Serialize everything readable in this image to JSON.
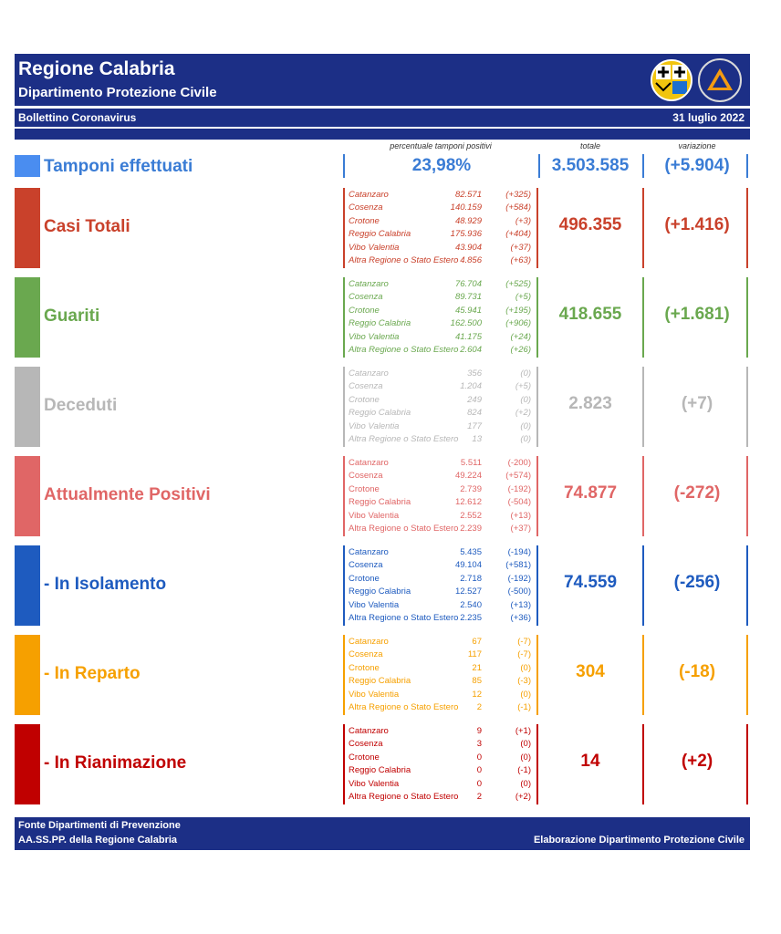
{
  "header": {
    "title": "Regione Calabria",
    "subtitle": "Dipartimento Protezione Civile",
    "bulletin": "Bollettino Coronavirus",
    "date": "31 luglio 2022",
    "logo2_text": "PROTEZIONE CIVILE"
  },
  "columns": {
    "percent_label": "percentuale tamponi positivi",
    "total_label": "totale",
    "variation_label": "variazione"
  },
  "tamponi": {
    "label": "Tamponi effettuati",
    "percent": "23,98%",
    "total": "3.503.585",
    "variation": "(+5.904)",
    "color": "#3a7cd5"
  },
  "sections": [
    {
      "label": "Casi Totali",
      "color": "#c9412b",
      "italic": true,
      "total": "496.355",
      "variation": "(+1.416)",
      "rows": [
        {
          "place": "Catanzaro",
          "value": "82.571",
          "delta": "(+325)"
        },
        {
          "place": "Cosenza",
          "value": "140.159",
          "delta": "(+584)"
        },
        {
          "place": "Crotone",
          "value": "48.929",
          "delta": "(+3)"
        },
        {
          "place": "Reggio Calabria",
          "value": "175.936",
          "delta": "(+404)"
        },
        {
          "place": "Vibo Valentia",
          "value": "43.904",
          "delta": "(+37)"
        },
        {
          "place": "Altra Regione o Stato Estero",
          "value": "4.856",
          "delta": "(+63)"
        }
      ]
    },
    {
      "label": "Guariti",
      "color": "#6aa84f",
      "italic": true,
      "total": "418.655",
      "variation": "(+1.681)",
      "rows": [
        {
          "place": "Catanzaro",
          "value": "76.704",
          "delta": "(+525)"
        },
        {
          "place": "Cosenza",
          "value": "89.731",
          "delta": "(+5)"
        },
        {
          "place": "Crotone",
          "value": "45.941",
          "delta": "(+195)"
        },
        {
          "place": "Reggio Calabria",
          "value": "162.500",
          "delta": "(+906)"
        },
        {
          "place": "Vibo Valentia",
          "value": "41.175",
          "delta": "(+24)"
        },
        {
          "place": "Altra Regione o Stato Estero",
          "value": "2.604",
          "delta": "(+26)"
        }
      ]
    },
    {
      "label": "Deceduti",
      "color": "#b7b7b7",
      "italic": true,
      "total": "2.823",
      "variation": "(+7)",
      "rows": [
        {
          "place": "Catanzaro",
          "value": "356",
          "delta": "(0)"
        },
        {
          "place": "Cosenza",
          "value": "1.204",
          "delta": "(+5)"
        },
        {
          "place": "Crotone",
          "value": "249",
          "delta": "(0)"
        },
        {
          "place": "Reggio Calabria",
          "value": "824",
          "delta": "(+2)"
        },
        {
          "place": "Vibo Valentia",
          "value": "177",
          "delta": "(0)"
        },
        {
          "place": "Altra Regione o Stato Estero",
          "value": "13",
          "delta": "(0)"
        }
      ]
    },
    {
      "label": "Attualmente Positivi",
      "color": "#e06666",
      "italic": false,
      "total": "74.877",
      "variation": "(-272)",
      "rows": [
        {
          "place": "Catanzaro",
          "value": "5.511",
          "delta": "(-200)"
        },
        {
          "place": "Cosenza",
          "value": "49.224",
          "delta": "(+574)"
        },
        {
          "place": "Crotone",
          "value": "2.739",
          "delta": "(-192)"
        },
        {
          "place": "Reggio Calabria",
          "value": "12.612",
          "delta": "(-504)"
        },
        {
          "place": "Vibo Valentia",
          "value": "2.552",
          "delta": "(+13)"
        },
        {
          "place": "Altra Regione o Stato Estero",
          "value": "2.239",
          "delta": "(+37)"
        }
      ]
    },
    {
      "label": "- In Isolamento",
      "color": "#1e5bbf",
      "italic": false,
      "total": "74.559",
      "variation": "(-256)",
      "rows": [
        {
          "place": "Catanzaro",
          "value": "5.435",
          "delta": "(-194)"
        },
        {
          "place": "Cosenza",
          "value": "49.104",
          "delta": "(+581)"
        },
        {
          "place": "Crotone",
          "value": "2.718",
          "delta": "(-192)"
        },
        {
          "place": "Reggio Calabria",
          "value": "12.527",
          "delta": "(-500)"
        },
        {
          "place": "Vibo Valentia",
          "value": "2.540",
          "delta": "(+13)"
        },
        {
          "place": "Altra Regione o Stato Estero",
          "value": "2.235",
          "delta": "(+36)"
        }
      ]
    },
    {
      "label": "- In Reparto",
      "color": "#f6a000",
      "italic": false,
      "total": "304",
      "variation": "(-18)",
      "rows": [
        {
          "place": "Catanzaro",
          "value": "67",
          "delta": "(-7)"
        },
        {
          "place": "Cosenza",
          "value": "117",
          "delta": "(-7)"
        },
        {
          "place": "Crotone",
          "value": "21",
          "delta": "(0)"
        },
        {
          "place": "Reggio Calabria",
          "value": "85",
          "delta": "(-3)"
        },
        {
          "place": "Vibo Valentia",
          "value": "12",
          "delta": "(0)"
        },
        {
          "place": "Altra Regione o Stato Estero",
          "value": "2",
          "delta": "(-1)"
        }
      ]
    },
    {
      "label": "- In Rianimazione",
      "color": "#c00000",
      "italic": false,
      "total": "14",
      "variation": "(+2)",
      "rows": [
        {
          "place": "Catanzaro",
          "value": "9",
          "delta": "(+1)"
        },
        {
          "place": "Cosenza",
          "value": "3",
          "delta": "(0)"
        },
        {
          "place": "Crotone",
          "value": "0",
          "delta": "(0)"
        },
        {
          "place": "Reggio Calabria",
          "value": "0",
          "delta": "(-1)"
        },
        {
          "place": "Vibo Valentia",
          "value": "0",
          "delta": "(0)"
        },
        {
          "place": "Altra Regione o Stato Estero",
          "value": "2",
          "delta": "(+2)"
        }
      ]
    }
  ],
  "footer": {
    "line1": "Fonte Dipartimenti di Prevenzione",
    "line2": "AA.SS.PP.  della Regione Calabria",
    "right": "Elaborazione Dipartimento Protezione Civile"
  }
}
